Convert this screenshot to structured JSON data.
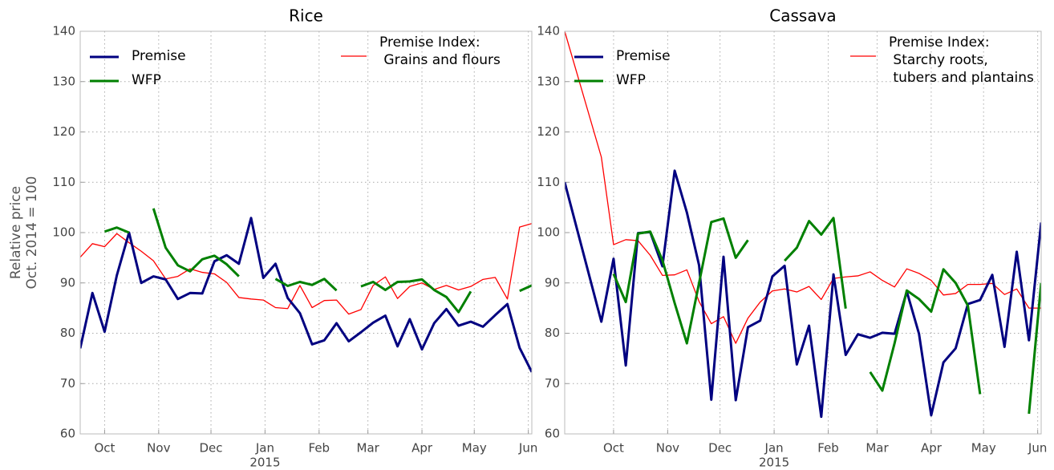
{
  "chart_data": [
    {
      "type": "line",
      "title": "Rice",
      "ylabel": [
        "Relative price",
        "Oct. 2014 = 100"
      ],
      "x": [
        -14,
        -7,
        0,
        7,
        14,
        21,
        28,
        35,
        42,
        49,
        56,
        63,
        70,
        77,
        84,
        91,
        98,
        105,
        112,
        119,
        126,
        133,
        140,
        147,
        154,
        161,
        168,
        175,
        182,
        189,
        196,
        203,
        210,
        217,
        224,
        231,
        238,
        245
      ],
      "xlim": [
        -14,
        245
      ],
      "xticks": [
        {
          "value": 0,
          "label": "Oct"
        },
        {
          "value": 31,
          "label": "Nov"
        },
        {
          "value": 61,
          "label": "Dec"
        },
        {
          "value": 92,
          "label": "Jan"
        },
        {
          "value": 123,
          "label": "Feb"
        },
        {
          "value": 151,
          "label": "Mar"
        },
        {
          "value": 182,
          "label": "Apr"
        },
        {
          "value": 212,
          "label": "May"
        },
        {
          "value": 243,
          "label": "Jun"
        }
      ],
      "xtick_year": {
        "value": 92,
        "label": "2015"
      },
      "ylim": [
        60,
        140
      ],
      "yticks": [
        60,
        70,
        80,
        90,
        100,
        110,
        120,
        130,
        140
      ],
      "grid": true,
      "series": [
        {
          "name": "Premise",
          "color": "#000080",
          "legend_loc": "upper left",
          "values": [
            77,
            88,
            80.3,
            91.5,
            100,
            90,
            91.3,
            90.7,
            86.8,
            88,
            87.9,
            94.3,
            95.5,
            93.8,
            102.9,
            91,
            93.8,
            87,
            84,
            77.8,
            78.6,
            82,
            78.4,
            80.2,
            82.1,
            83.5,
            77.4,
            82.8,
            76.8,
            82,
            84.8,
            81.5,
            82.3,
            81.3,
            83.6,
            85.8,
            77.1,
            72.3
          ]
        },
        {
          "name": "WFP",
          "color": "#008000",
          "legend_loc": "upper left",
          "values": [
            null,
            null,
            100.2,
            101,
            100,
            null,
            104.8,
            97,
            93.5,
            92.3,
            94.7,
            95.4,
            93.7,
            91.3,
            null,
            null,
            90.8,
            89.4,
            90.2,
            89.6,
            90.8,
            88.5,
            null,
            89.3,
            90.2,
            88.6,
            90.2,
            90.3,
            90.7,
            88.6,
            87.2,
            84.2,
            88.3,
            null,
            null,
            null,
            88.4,
            89.5
          ]
        },
        {
          "name": "Premise Index:\n Grains and flours",
          "color": "#ff0000",
          "legend_loc": "upper right",
          "values": [
            95.1,
            97.8,
            97.2,
            99.8,
            98,
            96.3,
            94.4,
            90.8,
            91.3,
            92.8,
            92.1,
            91.8,
            90.1,
            87.1,
            86.8,
            86.6,
            85.1,
            84.9,
            89.5,
            85.1,
            86.5,
            86.6,
            83.8,
            84.7,
            89.5,
            91.2,
            86.9,
            89.3,
            90,
            88.7,
            89.5,
            88.6,
            89.3,
            90.7,
            91.1,
            86.8,
            101.1,
            101.8
          ]
        }
      ]
    },
    {
      "type": "line",
      "title": "Cassava",
      "x": [
        -28,
        -7,
        0,
        7,
        14,
        21,
        28,
        35,
        42,
        49,
        56,
        63,
        70,
        77,
        84,
        91,
        98,
        105,
        112,
        119,
        126,
        133,
        140,
        147,
        154,
        161,
        168,
        175,
        182,
        189,
        196,
        203,
        210,
        217,
        224,
        231,
        238,
        245
      ],
      "xlim": [
        -28,
        245
      ],
      "xticks": [
        {
          "value": 0,
          "label": "Oct"
        },
        {
          "value": 31,
          "label": "Nov"
        },
        {
          "value": 61,
          "label": "Dec"
        },
        {
          "value": 92,
          "label": "Jan"
        },
        {
          "value": 123,
          "label": "Feb"
        },
        {
          "value": 151,
          "label": "Mar"
        },
        {
          "value": 182,
          "label": "Apr"
        },
        {
          "value": 212,
          "label": "May"
        },
        {
          "value": 243,
          "label": "Jun"
        }
      ],
      "xtick_year": {
        "value": 92,
        "label": "2015"
      },
      "ylim": [
        60,
        140
      ],
      "yticks": [
        60,
        70,
        80,
        90,
        100,
        110,
        120,
        130,
        140
      ],
      "grid": true,
      "series": [
        {
          "name": "Premise",
          "color": "#000080",
          "legend_loc": "upper left",
          "values": [
            110,
            82.3,
            94.8,
            73.6,
            99.9,
            100.1,
            93.3,
            112.3,
            104,
            93.5,
            66.8,
            95.2,
            66.7,
            81.2,
            82.5,
            91.3,
            93.4,
            73.8,
            81.5,
            63.4,
            91.7,
            75.7,
            79.8,
            79.1,
            80.1,
            79.9,
            88.3,
            79.9,
            63.7,
            74.2,
            77,
            85.8,
            86.6,
            91.6,
            77.3,
            96.2,
            78.6,
            102
          ]
        },
        {
          "name": "WFP",
          "color": "#008000",
          "legend_loc": "upper left",
          "values": [
            null,
            null,
            91.8,
            86.2,
            99.8,
            100.2,
            94.5,
            86,
            78,
            90,
            102.1,
            102.8,
            95,
            98.5,
            null,
            null,
            94.4,
            97,
            102.3,
            99.6,
            102.9,
            84.9,
            null,
            72.3,
            68.6,
            78,
            88.5,
            86.8,
            84.3,
            92.7,
            90,
            85.5,
            67.9,
            null,
            null,
            null,
            64,
            90
          ]
        },
        {
          "name": "Premise Index:\n Starchy roots,\n tubers and plantains",
          "color": "#ff0000",
          "legend_loc": "upper right",
          "values": [
            140,
            115,
            97.6,
            98.6,
            98.4,
            95.5,
            91.5,
            91.6,
            92.6,
            86.3,
            81.9,
            83.3,
            78,
            83,
            86.2,
            88.4,
            88.8,
            88.2,
            89.3,
            86.7,
            90.9,
            91.2,
            91.4,
            92.2,
            90.5,
            89.2,
            92.8,
            91.9,
            90.5,
            87.6,
            87.9,
            89.7,
            89.7,
            89.9,
            87.7,
            88.8,
            85,
            85
          ]
        }
      ]
    }
  ]
}
